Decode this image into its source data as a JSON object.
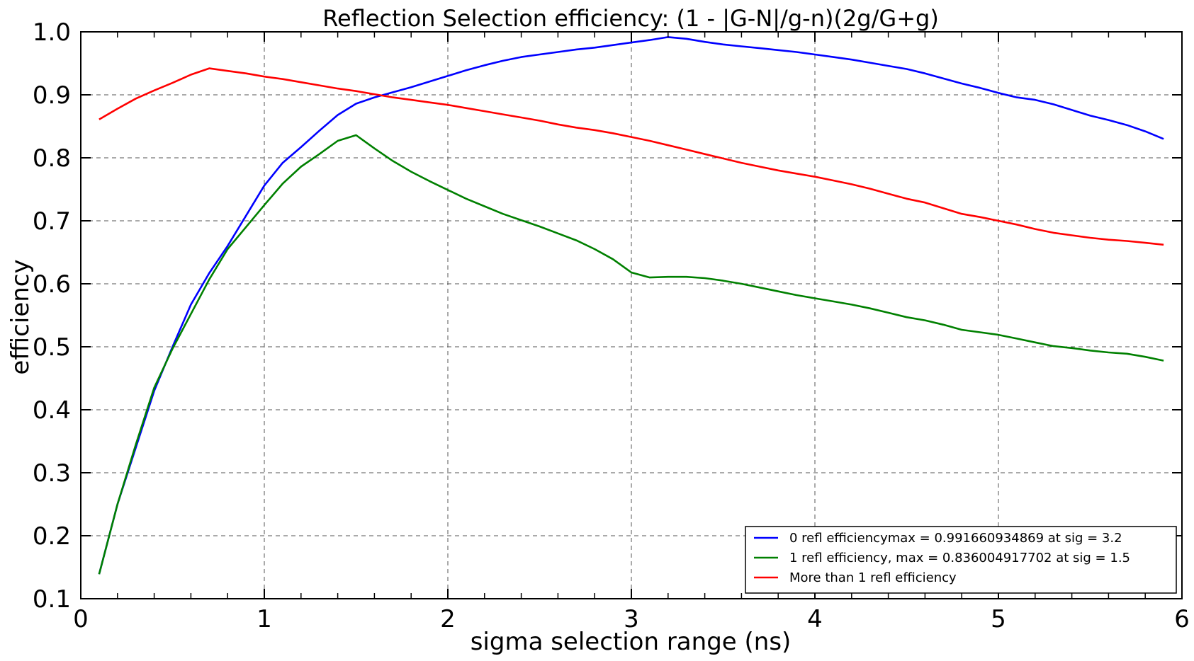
{
  "chart_data": {
    "type": "line",
    "title": "Reflection Selection efficiency: (1 - |G-N|/g-n)(2g/G+g)",
    "xlabel": "sigma selection range (ns)",
    "ylabel": "efficiency",
    "xlim": [
      0,
      6
    ],
    "ylim": [
      0.1,
      1.0
    ],
    "xticks": [
      "0",
      "1",
      "2",
      "3",
      "4",
      "5",
      "6"
    ],
    "yticks": [
      "0.1",
      "0.2",
      "0.3",
      "0.4",
      "0.5",
      "0.6",
      "0.7",
      "0.8",
      "0.9",
      "1.0"
    ],
    "grid": true,
    "legend_position": "lower-right",
    "x": [
      0.1,
      0.2,
      0.3,
      0.4,
      0.5,
      0.6,
      0.7,
      0.8,
      0.9,
      1.0,
      1.1,
      1.2,
      1.3,
      1.4,
      1.5,
      1.6,
      1.7,
      1.8,
      1.9,
      2.0,
      2.1,
      2.2,
      2.3,
      2.4,
      2.5,
      2.6,
      2.7,
      2.8,
      2.9,
      3.0,
      3.1,
      3.2,
      3.3,
      3.4,
      3.5,
      3.6,
      3.7,
      3.8,
      3.9,
      4.0,
      4.1,
      4.2,
      4.3,
      4.4,
      4.5,
      4.6,
      4.7,
      4.8,
      4.9,
      5.0,
      5.1,
      5.2,
      5.3,
      5.4,
      5.5,
      5.6,
      5.7,
      5.8,
      5.9
    ],
    "series": [
      {
        "name": "0 refl efficiencymax = 0.991660934869 at sig = 3.2",
        "color": "#0000ff",
        "values": [
          0.139,
          0.25,
          0.34,
          0.43,
          0.5,
          0.567,
          0.617,
          0.66,
          0.708,
          0.756,
          0.792,
          0.817,
          0.843,
          0.868,
          0.886,
          0.896,
          0.904,
          0.912,
          0.921,
          0.93,
          0.939,
          0.947,
          0.954,
          0.96,
          0.964,
          0.968,
          0.972,
          0.975,
          0.979,
          0.983,
          0.987,
          0.9917,
          0.989,
          0.984,
          0.98,
          0.977,
          0.974,
          0.971,
          0.968,
          0.964,
          0.96,
          0.956,
          0.951,
          0.946,
          0.941,
          0.934,
          0.926,
          0.918,
          0.911,
          0.903,
          0.896,
          0.892,
          0.885,
          0.876,
          0.867,
          0.86,
          0.852,
          0.842,
          0.83
        ]
      },
      {
        "name": "1 refl efficiency, max = 0.836004917702 at sig = 1.5",
        "color": "#008000",
        "values": [
          0.139,
          0.25,
          0.345,
          0.435,
          0.497,
          0.552,
          0.607,
          0.655,
          0.69,
          0.725,
          0.759,
          0.786,
          0.806,
          0.827,
          0.836,
          0.815,
          0.795,
          0.778,
          0.763,
          0.749,
          0.735,
          0.723,
          0.711,
          0.701,
          0.691,
          0.68,
          0.669,
          0.655,
          0.639,
          0.618,
          0.61,
          0.611,
          0.611,
          0.609,
          0.605,
          0.6,
          0.594,
          0.588,
          0.582,
          0.577,
          0.572,
          0.567,
          0.561,
          0.554,
          0.547,
          0.542,
          0.535,
          0.527,
          0.523,
          0.519,
          0.513,
          0.507,
          0.501,
          0.498,
          0.494,
          0.491,
          0.489,
          0.484,
          0.478
        ]
      },
      {
        "name": "More than 1 refl efficiency",
        "color": "#ff0000",
        "values": [
          0.861,
          0.878,
          0.894,
          0.907,
          0.919,
          0.932,
          0.942,
          0.938,
          0.934,
          0.929,
          0.925,
          0.92,
          0.915,
          0.91,
          0.906,
          0.901,
          0.896,
          0.892,
          0.888,
          0.884,
          0.879,
          0.874,
          0.869,
          0.864,
          0.859,
          0.853,
          0.848,
          0.844,
          0.839,
          0.833,
          0.827,
          0.82,
          0.813,
          0.806,
          0.799,
          0.792,
          0.786,
          0.78,
          0.775,
          0.77,
          0.764,
          0.758,
          0.751,
          0.743,
          0.735,
          0.729,
          0.72,
          0.711,
          0.706,
          0.7,
          0.694,
          0.687,
          0.681,
          0.677,
          0.673,
          0.67,
          0.668,
          0.665,
          0.662
        ]
      }
    ]
  }
}
